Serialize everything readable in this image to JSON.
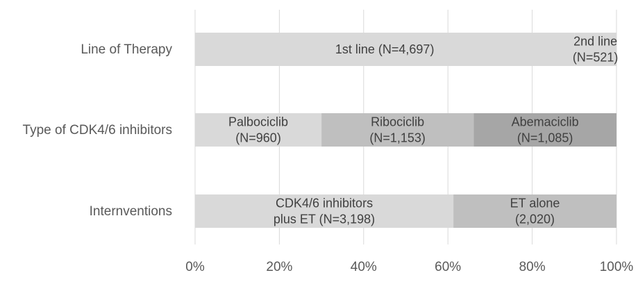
{
  "chart_data": {
    "type": "bar",
    "orientation": "horizontal",
    "stacked": true,
    "percent": true,
    "title": "",
    "xlabel": "",
    "ylabel": "",
    "xlim": [
      0,
      100
    ],
    "x_ticks": [
      "0%",
      "20%",
      "40%",
      "60%",
      "80%",
      "100%"
    ],
    "grid": true,
    "legend": "none",
    "categories": [
      "Line of Therapy",
      "Type of CDK4/6 inhibitors",
      "Internventions"
    ],
    "bars": [
      {
        "category": "Line of Therapy",
        "segments": [
          {
            "label": [
              "1st line (N=4,697)"
            ],
            "value": 90.0,
            "color": "#d9d9d9"
          },
          {
            "label": [
              "2nd line",
              "(N=521)"
            ],
            "value": 10.0,
            "color": "#d9d9d9"
          }
        ]
      },
      {
        "category": "Type of CDK4/6 inhibitors",
        "segments": [
          {
            "label": [
              "Palbociclib",
              "(N=960)"
            ],
            "value": 30.0,
            "color": "#d9d9d9"
          },
          {
            "label": [
              "Ribociclib",
              "(N=1,153)"
            ],
            "value": 36.1,
            "color": "#bfbfbf"
          },
          {
            "label": [
              "Abemaciclib",
              "(N=1,085)"
            ],
            "value": 33.9,
            "color": "#a6a6a6"
          }
        ]
      },
      {
        "category": "Internventions",
        "segments": [
          {
            "label": [
              "CDK4/6 inhibitors",
              "plus ET (N=3,198)"
            ],
            "value": 61.3,
            "color": "#d9d9d9"
          },
          {
            "label": [
              "ET alone",
              "(2,020)"
            ],
            "value": 38.7,
            "color": "#bfbfbf"
          }
        ]
      }
    ]
  }
}
